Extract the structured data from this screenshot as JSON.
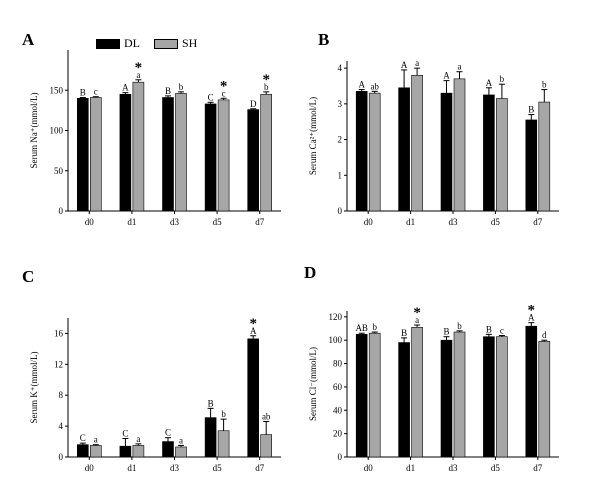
{
  "legend": {
    "items": [
      {
        "label": "DL",
        "color": "#000000"
      },
      {
        "label": "SH",
        "color": "#a6a6a6"
      }
    ]
  },
  "chart_data": [
    {
      "panel": "A",
      "type": "bar",
      "categories": [
        "d0",
        "d1",
        "d3",
        "d5",
        "d7"
      ],
      "ylabel": "Serum Na⁺(mmol/L)",
      "ylim": [
        0,
        200
      ],
      "yticks": [
        0,
        50,
        100,
        150
      ],
      "series": [
        {
          "name": "DL",
          "color": "#000000",
          "values": [
            140,
            145,
            141,
            133,
            126
          ],
          "errors": [
            1,
            2,
            2,
            2,
            1
          ],
          "labels": [
            "B",
            "A",
            "B",
            "C",
            "D"
          ],
          "stars": [
            false,
            false,
            false,
            false,
            false
          ]
        },
        {
          "name": "SH",
          "color": "#a6a6a6",
          "values": [
            141,
            160,
            146,
            138,
            145
          ],
          "errors": [
            1,
            3,
            2,
            2,
            3
          ],
          "labels": [
            "c",
            "a",
            "b",
            "c",
            "b"
          ],
          "stars": [
            false,
            true,
            false,
            true,
            true
          ]
        }
      ]
    },
    {
      "panel": "B",
      "type": "bar",
      "categories": [
        "d0",
        "d1",
        "d3",
        "d5",
        "d7"
      ],
      "ylabel": "Serum Ca²⁺(mmol/L)",
      "ylim": [
        0,
        4.2
      ],
      "yticks": [
        0,
        1,
        2,
        3,
        4
      ],
      "series": [
        {
          "name": "DL",
          "color": "#000000",
          "values": [
            3.35,
            3.45,
            3.3,
            3.25,
            2.55
          ],
          "errors": [
            0.05,
            0.5,
            0.35,
            0.2,
            0.15
          ],
          "labels": [
            "A",
            "A",
            "A",
            "A",
            "B"
          ],
          "stars": [
            false,
            false,
            false,
            false,
            false
          ]
        },
        {
          "name": "SH",
          "color": "#a6a6a6",
          "values": [
            3.3,
            3.8,
            3.7,
            3.15,
            3.05
          ],
          "errors": [
            0.05,
            0.2,
            0.2,
            0.4,
            0.35
          ],
          "labels": [
            "ab",
            "a",
            "a",
            "b",
            "b"
          ],
          "stars": [
            false,
            false,
            false,
            false,
            false
          ]
        }
      ]
    },
    {
      "panel": "C",
      "type": "bar",
      "categories": [
        "d0",
        "d1",
        "d3",
        "d5",
        "d7"
      ],
      "ylabel": "Serum K⁺(mmol/L)",
      "ylim": [
        0,
        18
      ],
      "yticks": [
        0,
        4,
        8,
        12,
        16
      ],
      "series": [
        {
          "name": "DL",
          "color": "#000000",
          "values": [
            1.6,
            1.4,
            2.0,
            5.1,
            15.3
          ],
          "errors": [
            0.2,
            1.0,
            0.5,
            1.2,
            0.4
          ],
          "labels": [
            "C",
            "C",
            "C",
            "B",
            "A"
          ],
          "stars": [
            false,
            false,
            false,
            false,
            true
          ]
        },
        {
          "name": "SH",
          "color": "#a6a6a6",
          "values": [
            1.5,
            1.5,
            1.3,
            3.4,
            2.9
          ],
          "errors": [
            0.1,
            0.2,
            0.2,
            1.5,
            1.7
          ],
          "labels": [
            "a",
            "a",
            "a",
            "b",
            "ab"
          ],
          "stars": [
            false,
            false,
            false,
            false,
            false
          ]
        }
      ]
    },
    {
      "panel": "D",
      "type": "bar",
      "categories": [
        "d0",
        "d1",
        "d3",
        "d5",
        "d7"
      ],
      "ylabel": "Serum Cl⁻(mmol/L)",
      "ylim": [
        0,
        125
      ],
      "yticks": [
        0,
        20,
        40,
        60,
        80,
        100,
        120
      ],
      "series": [
        {
          "name": "DL",
          "color": "#000000",
          "values": [
            105,
            98,
            100,
            103,
            112
          ],
          "errors": [
            1,
            4,
            3,
            2,
            3
          ],
          "labels": [
            "AB",
            "B",
            "B",
            "B",
            "A"
          ],
          "stars": [
            false,
            false,
            false,
            false,
            true
          ]
        },
        {
          "name": "SH",
          "color": "#a6a6a6",
          "values": [
            106,
            111,
            107,
            103,
            99
          ],
          "errors": [
            1,
            2,
            1,
            1,
            1
          ],
          "labels": [
            "b",
            "a",
            "b",
            "c",
            "d"
          ],
          "stars": [
            false,
            true,
            false,
            false,
            false
          ]
        }
      ]
    }
  ]
}
